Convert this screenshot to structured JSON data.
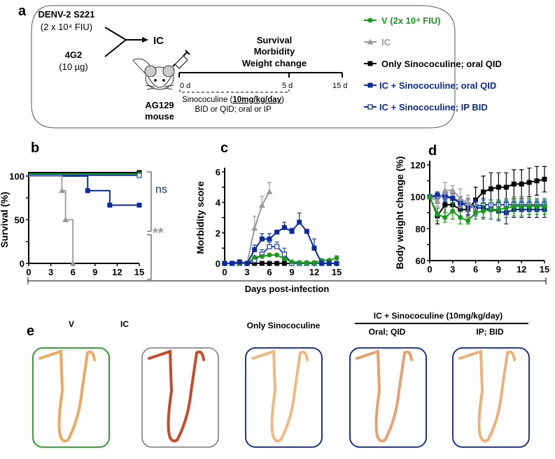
{
  "colors": {
    "V": "#1a9a1a",
    "IC": "#9a9a9a",
    "Only": "#000000",
    "ICoral": "#0a2aa0",
    "ICip": "#2a4ab8"
  },
  "panel_a": {
    "label": "a",
    "virus": "DENV-2 S221",
    "virus_dose": "(2 x 10⁴ FIU)",
    "antibody": "4G2",
    "antibody_dose": "(10 µg)",
    "ic": "IC",
    "mouse": "AG129",
    "mouse2": "mouse",
    "readouts": [
      "Survival",
      "Morbidity",
      "Weight change"
    ],
    "timeline": [
      "0 d",
      "5 d",
      "15 d"
    ],
    "treatment_prefix": "Sinococuline (",
    "treatment_dose": "10mg/kg/day",
    "treatment_suffix": ")",
    "treatment_regimen": "BID or QID; oral or IP",
    "legend": [
      {
        "label": "V (2x 10⁴ FIU)",
        "color": "#1a9a1a",
        "marker": "circle"
      },
      {
        "label": "IC",
        "color": "#9a9a9a",
        "marker": "triangle"
      },
      {
        "label": "Only Sinococuline; oral QID",
        "color": "#000000",
        "marker": "square"
      },
      {
        "label": "IC + Sinococuline; oral QID",
        "color": "#0a2aa0",
        "marker": "square"
      },
      {
        "label": "IC + Sinococuline; IP BID",
        "color": "#0a2aa0",
        "marker": "open-square"
      }
    ]
  },
  "shared_xlabel": "Days post-infection",
  "chart_data": [
    {
      "panel": "b",
      "type": "line",
      "step": true,
      "ylabel": "Survival (%)",
      "xlim": [
        0,
        15
      ],
      "ylim": [
        0,
        100
      ],
      "xticks": [
        "0",
        "3",
        "6",
        "9",
        "12",
        "15"
      ],
      "yticks": [
        "0",
        "50",
        "100"
      ],
      "annotations": [
        "ns",
        "**"
      ],
      "series": [
        {
          "key": "Only",
          "x": [
            0,
            15
          ],
          "y": [
            100,
            100
          ]
        },
        {
          "key": "V",
          "x": [
            0,
            15
          ],
          "y": [
            100,
            100
          ]
        },
        {
          "key": "ICip",
          "x": [
            0,
            15
          ],
          "y": [
            100,
            100
          ]
        },
        {
          "key": "ICoral",
          "x": [
            0,
            8,
            11,
            15
          ],
          "y": [
            100,
            83.3,
            66.7,
            66.7
          ]
        },
        {
          "key": "IC",
          "x": [
            0,
            4.5,
            5,
            6
          ],
          "y": [
            100,
            83.3,
            50,
            0
          ]
        }
      ]
    },
    {
      "panel": "c",
      "type": "line",
      "ylabel": "Morbidity score",
      "xlim": [
        0,
        15
      ],
      "ylim": [
        0,
        6
      ],
      "xticks": [
        "0",
        "3",
        "6",
        "9",
        "12",
        "15"
      ],
      "yticks": [
        "0",
        "2",
        "4",
        "6"
      ],
      "series": [
        {
          "key": "Only",
          "x": [
            0,
            1,
            2,
            3,
            4,
            5,
            6,
            7,
            8,
            9,
            10,
            11,
            12,
            13,
            14,
            15
          ],
          "y": [
            0,
            0,
            0,
            0,
            0,
            0,
            0,
            0,
            0,
            0,
            0,
            0,
            0,
            0,
            0,
            0
          ],
          "err": [
            0,
            0,
            0,
            0,
            0,
            0,
            0,
            0,
            0,
            0,
            0,
            0,
            0,
            0,
            0,
            0
          ]
        },
        {
          "key": "IC",
          "x": [
            0,
            1,
            2,
            3,
            4,
            5,
            6
          ],
          "y": [
            0,
            0,
            0,
            0,
            2.3,
            3.8,
            4.7
          ],
          "err": [
            0,
            0,
            0,
            0,
            0.8,
            0.6,
            0.6
          ]
        },
        {
          "key": "ICip",
          "x": [
            0,
            1,
            2,
            3,
            4,
            5,
            6,
            7,
            8,
            9,
            10,
            11,
            12,
            13,
            14,
            15
          ],
          "y": [
            0,
            0,
            0,
            0,
            0.2,
            0.6,
            1.1,
            1.1,
            0.6,
            0,
            0,
            0,
            0,
            0,
            0,
            0
          ],
          "err": [
            0,
            0,
            0,
            0,
            0.2,
            0.3,
            0.3,
            0.3,
            0.4,
            0,
            0,
            0,
            0,
            0,
            0,
            0
          ]
        },
        {
          "key": "V",
          "x": [
            0,
            1,
            2,
            3,
            4,
            5,
            6,
            7,
            8,
            9,
            10,
            11,
            12,
            13,
            14,
            15
          ],
          "y": [
            0,
            0,
            0,
            0,
            0.4,
            0.45,
            0.55,
            0.55,
            0.3,
            0.1,
            0.05,
            0.05,
            0.05,
            0.2,
            0.2,
            0.35
          ],
          "err": [
            0,
            0,
            0,
            0,
            0.1,
            0.1,
            0.1,
            0.1,
            0.1,
            0,
            0,
            0,
            0,
            0.05,
            0.05,
            0.15
          ]
        },
        {
          "key": "ICoral",
          "x": [
            0,
            1,
            2,
            3,
            4,
            5,
            6,
            7,
            8,
            9,
            10,
            11,
            12,
            13,
            14,
            15
          ],
          "y": [
            0,
            0,
            0.1,
            0,
            0.9,
            1.6,
            1.6,
            2.05,
            2.35,
            2.1,
            2.7,
            2.1,
            1.0,
            0,
            0,
            0
          ],
          "err": [
            0,
            0,
            0.1,
            0,
            0.3,
            0.35,
            0.35,
            0.1,
            0.35,
            0.2,
            0.6,
            0.1,
            0.6,
            0,
            0,
            0
          ]
        }
      ]
    },
    {
      "panel": "d",
      "type": "line",
      "ylabel": "Body weight change (%)",
      "xlim": [
        0,
        15
      ],
      "ylim": [
        60,
        120
      ],
      "xticks": [
        "0",
        "3",
        "6",
        "9",
        "12",
        "15"
      ],
      "yticks": [
        "60",
        "80",
        "100",
        "120"
      ],
      "series": [
        {
          "key": "Only",
          "x": [
            0,
            1,
            2,
            3,
            4,
            5,
            6,
            7,
            8,
            9,
            10,
            11,
            12,
            13,
            14,
            15
          ],
          "y": [
            100,
            88,
            95,
            95,
            92,
            92,
            98,
            103,
            105,
            106,
            106,
            108,
            108,
            109,
            110,
            111
          ],
          "err": [
            0,
            5,
            5,
            5,
            4,
            4,
            8,
            10,
            10,
            9,
            9,
            9,
            9,
            9,
            9,
            8
          ]
        },
        {
          "key": "ICip",
          "x": [
            0,
            1,
            2,
            3,
            4,
            5,
            6,
            7,
            8,
            9,
            10,
            11,
            12,
            13,
            14,
            15
          ],
          "y": [
            100,
            100,
            101,
            99,
            97,
            95,
            94,
            95,
            95,
            95,
            95,
            95,
            95,
            95,
            95,
            95
          ],
          "err": [
            0,
            3,
            3,
            3,
            3,
            3,
            3,
            3,
            3,
            3,
            3,
            3,
            3,
            3,
            3,
            3
          ]
        },
        {
          "key": "ICoral",
          "x": [
            0,
            1,
            2,
            3,
            4,
            5,
            6,
            7,
            8,
            9,
            10,
            11,
            12,
            13,
            14,
            15
          ],
          "y": [
            100,
            101,
            100,
            99,
            96,
            94,
            93,
            93,
            92,
            91,
            90,
            92,
            92,
            92,
            92,
            92
          ],
          "err": [
            0,
            2,
            3,
            3,
            4,
            5,
            5,
            6,
            6,
            6,
            7,
            5,
            5,
            5,
            5,
            5
          ]
        },
        {
          "key": "IC",
          "x": [
            0,
            1,
            2,
            3,
            4,
            5,
            6
          ],
          "y": [
            100,
            97,
            104,
            104,
            99,
            96,
            92
          ],
          "err": [
            0,
            3,
            5,
            3,
            6,
            5,
            3
          ]
        },
        {
          "key": "V",
          "x": [
            0,
            1,
            2,
            3,
            4,
            5,
            6,
            7,
            8,
            9,
            10,
            11,
            12,
            13,
            14,
            15
          ],
          "y": [
            100,
            89,
            87,
            91,
            87,
            85,
            90,
            91,
            92,
            92,
            93,
            94,
            94,
            94,
            94,
            94
          ],
          "err": [
            0,
            4,
            3,
            5,
            4,
            2,
            4,
            5,
            6,
            6,
            6,
            6,
            6,
            5,
            5,
            5
          ]
        }
      ]
    }
  ],
  "panel_e": {
    "label": "e",
    "group_title": "IC + Sinococuline (10mg/kg/day)",
    "items": [
      {
        "label": "V",
        "border": "#1a9a1a",
        "tone": "#eda860"
      },
      {
        "label": "IC",
        "border": "#8a8a8a",
        "tone": "#c84a28"
      },
      {
        "label": "Only Sinococuline",
        "border": "#0a2090",
        "tone": "#f0b880"
      },
      {
        "label": "Oral; QID",
        "border": "#0a2090",
        "tone": "#e8a070"
      },
      {
        "label": "IP; BID",
        "border": "#0a2090",
        "tone": "#eeb078"
      }
    ]
  }
}
